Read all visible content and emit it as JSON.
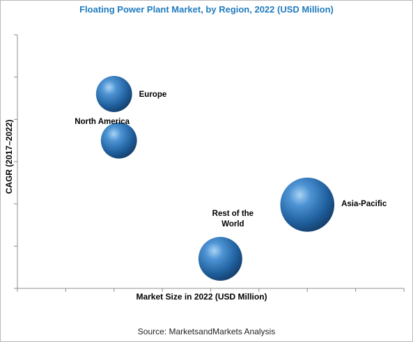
{
  "chart_data": {
    "type": "scatter",
    "title": "Floating Power Plant Market, by Region, 2022 (USD Million)",
    "xlabel": "Market Size in 2022 (USD Million)",
    "ylabel": "CAGR (2017–2022)",
    "xlim": [
      0,
      8
    ],
    "ylim": [
      0,
      6
    ],
    "grid": false,
    "points": [
      {
        "label": "Europe",
        "x": 2.0,
        "y": 4.6,
        "size": 1.0
      },
      {
        "label": "North America",
        "x": 2.1,
        "y": 3.5,
        "size": 1.0
      },
      {
        "label": "Asia-Pacific",
        "x": 6.0,
        "y": 1.98,
        "size": 3.2
      },
      {
        "label": "Rest of the\nWorld",
        "x": 4.2,
        "y": 0.7,
        "size": 2.1
      }
    ],
    "bubble_color": "#2e6fb0",
    "title_color": "#1f7bbf"
  },
  "source": "Source: MarketsandMarkets Analysis"
}
